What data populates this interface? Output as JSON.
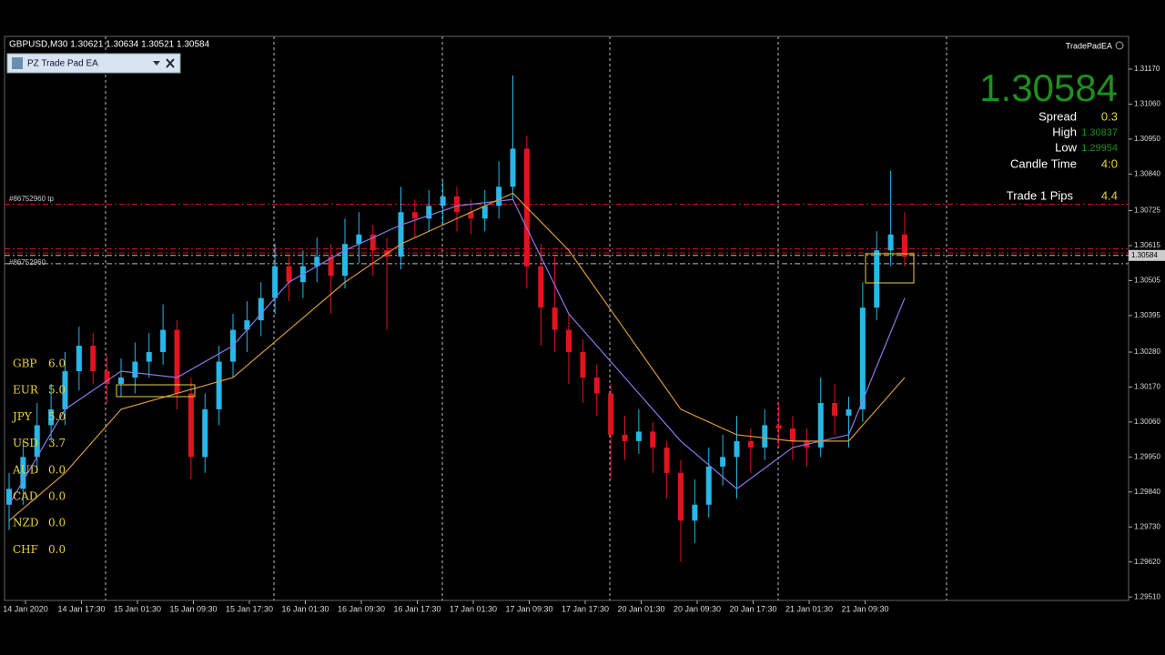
{
  "header": {
    "symbol_line": "GBPUSD,M30  1.30621 1.30634 1.30521 1.30584",
    "expert": "TradePadEA"
  },
  "panel": {
    "title": "PZ Trade Pad EA"
  },
  "info": {
    "price": "1.30584",
    "spread_label": "Spread",
    "spread": "0.3",
    "high_label": "High",
    "high": "1.30837",
    "low_label": "Low",
    "low": "1.29954",
    "candle_time_label": "Candle Time",
    "candle_time": "4:0",
    "trade_label": "Trade 1 Pips",
    "trade": "4.4"
  },
  "strength": [
    [
      "GBP",
      "6.0"
    ],
    [
      "EUR",
      "5.0"
    ],
    [
      "JPY",
      "5.0"
    ],
    [
      "USD",
      "3.7"
    ],
    [
      "AUD",
      "0.0"
    ],
    [
      "CAD",
      "0.0"
    ],
    [
      "NZD",
      "0.0"
    ],
    [
      "CHF",
      "0.0"
    ]
  ],
  "orders": [
    "#86752960 tp",
    "#86752960"
  ],
  "chart_data": {
    "type": "candlestick",
    "categories": [
      "14 Jan 2020",
      "14 Jan 17:30",
      "15 Jan 01:30",
      "15 Jan 09:30",
      "15 Jan 17:30",
      "16 Jan 01:30",
      "16 Jan 09:30",
      "16 Jan 17:30",
      "17 Jan 01:30",
      "17 Jan 09:30",
      "17 Jan 17:30",
      "20 Jan 01:30",
      "20 Jan 09:30",
      "20 Jan 17:30",
      "21 Jan 01:30",
      "21 Jan 09:30"
    ],
    "ylim": [
      1.29499,
      1.31273
    ],
    "yticks": [
      {
        "value": 1.3117,
        "label": "1.31170"
      },
      {
        "value": 1.3106,
        "label": "1.31060"
      },
      {
        "value": 1.3095,
        "label": "1.30950"
      },
      {
        "value": 1.3084,
        "label": "1.30840"
      },
      {
        "value": 1.30725,
        "label": "1.30725"
      },
      {
        "value": 1.30615,
        "label": "1.30615"
      },
      {
        "value": 1.30505,
        "label": "1.30505"
      },
      {
        "value": 1.30395,
        "label": "1.30395"
      },
      {
        "value": 1.3028,
        "label": "1.30280"
      },
      {
        "value": 1.3017,
        "label": "1.30170"
      },
      {
        "value": 1.3006,
        "label": "1.30060"
      },
      {
        "value": 1.2995,
        "label": "1.29950"
      },
      {
        "value": 1.2984,
        "label": "1.29840"
      },
      {
        "value": 1.2973,
        "label": "1.29730"
      },
      {
        "value": 1.2962,
        "label": "1.29620"
      },
      {
        "value": 1.2951,
        "label": "1.29510"
      }
    ],
    "current": {
      "value": 1.30584,
      "label": "1.30584"
    },
    "up_color": "#27b7e8",
    "down_color": "#e0141e",
    "candles": [
      [
        1.298,
        1.299,
        1.2972,
        1.2985
      ],
      [
        1.2985,
        1.3,
        1.298,
        1.2995
      ],
      [
        1.2995,
        1.3012,
        1.299,
        1.3005
      ],
      [
        1.3005,
        1.3018,
        1.3,
        1.301
      ],
      [
        1.301,
        1.3028,
        1.3005,
        1.3022
      ],
      [
        1.3022,
        1.3036,
        1.3016,
        1.303
      ],
      [
        1.303,
        1.3034,
        1.3018,
        1.3022
      ],
      [
        1.3022,
        1.3027,
        1.3012,
        1.3018
      ],
      [
        1.3018,
        1.3026,
        1.3014,
        1.302
      ],
      [
        1.302,
        1.3031,
        1.3015,
        1.3025
      ],
      [
        1.3025,
        1.3034,
        1.302,
        1.3028
      ],
      [
        1.3028,
        1.3043,
        1.3024,
        1.3035
      ],
      [
        1.3035,
        1.3038,
        1.301,
        1.3015
      ],
      [
        1.3015,
        1.302,
        1.2988,
        1.2995
      ],
      [
        1.2995,
        1.3015,
        1.299,
        1.301
      ],
      [
        1.301,
        1.303,
        1.3005,
        1.3025
      ],
      [
        1.3025,
        1.304,
        1.302,
        1.3035
      ],
      [
        1.3035,
        1.3044,
        1.3028,
        1.3038
      ],
      [
        1.3038,
        1.305,
        1.3033,
        1.3045
      ],
      [
        1.3045,
        1.3062,
        1.304,
        1.3055
      ],
      [
        1.3055,
        1.3058,
        1.3044,
        1.305
      ],
      [
        1.305,
        1.306,
        1.3045,
        1.3055
      ],
      [
        1.3055,
        1.3064,
        1.305,
        1.3058
      ],
      [
        1.3058,
        1.3062,
        1.304,
        1.3052
      ],
      [
        1.3052,
        1.307,
        1.3048,
        1.3062
      ],
      [
        1.3062,
        1.3072,
        1.3056,
        1.3065
      ],
      [
        1.3065,
        1.3068,
        1.3052,
        1.306
      ],
      [
        1.306,
        1.3064,
        1.3035,
        1.3058
      ],
      [
        1.3058,
        1.308,
        1.3054,
        1.3072
      ],
      [
        1.3072,
        1.3076,
        1.3064,
        1.307
      ],
      [
        1.307,
        1.3079,
        1.3066,
        1.3074
      ],
      [
        1.3074,
        1.3082,
        1.3068,
        1.3077
      ],
      [
        1.3077,
        1.308,
        1.3066,
        1.3072
      ],
      [
        1.3072,
        1.3076,
        1.3065,
        1.307
      ],
      [
        1.307,
        1.3079,
        1.3066,
        1.3074
      ],
      [
        1.3074,
        1.3088,
        1.307,
        1.308
      ],
      [
        1.308,
        1.3115,
        1.3076,
        1.3092
      ],
      [
        1.3092,
        1.3096,
        1.3048,
        1.3055
      ],
      [
        1.3055,
        1.3062,
        1.303,
        1.3042
      ],
      [
        1.3042,
        1.3058,
        1.3028,
        1.3035
      ],
      [
        1.3035,
        1.304,
        1.3018,
        1.3028
      ],
      [
        1.3028,
        1.3032,
        1.3012,
        1.302
      ],
      [
        1.302,
        1.3024,
        1.3008,
        1.3015
      ],
      [
        1.3015,
        1.3018,
        1.2988,
        1.3002
      ],
      [
        1.3002,
        1.3008,
        1.2994,
        1.3
      ],
      [
        1.3,
        1.301,
        1.2996,
        1.3003
      ],
      [
        1.3003,
        1.3006,
        1.299,
        1.2998
      ],
      [
        1.2998,
        1.3,
        1.2982,
        1.299
      ],
      [
        1.299,
        1.2994,
        1.2962,
        1.2975
      ],
      [
        1.2975,
        1.2988,
        1.2968,
        1.298
      ],
      [
        1.298,
        1.2998,
        1.2976,
        1.2992
      ],
      [
        1.2992,
        1.3002,
        1.2986,
        1.2995
      ],
      [
        1.2995,
        1.3008,
        1.2982,
        1.3
      ],
      [
        1.3,
        1.3004,
        1.299,
        1.2998
      ],
      [
        1.2998,
        1.301,
        1.2994,
        1.3005
      ],
      [
        1.3005,
        1.3012,
        1.2998,
        1.3004
      ],
      [
        1.3004,
        1.3008,
        1.2994,
        1.3
      ],
      [
        1.3,
        1.3004,
        1.2992,
        1.2998
      ],
      [
        1.2998,
        1.302,
        1.2995,
        1.3012
      ],
      [
        1.3012,
        1.3018,
        1.3002,
        1.3008
      ],
      [
        1.3008,
        1.3014,
        1.2998,
        1.301
      ],
      [
        1.301,
        1.305,
        1.3006,
        1.3042
      ],
      [
        1.3042,
        1.3066,
        1.3038,
        1.306
      ],
      [
        1.306,
        1.3085,
        1.3055,
        1.3065
      ],
      [
        1.3065,
        1.3072,
        1.3055,
        1.3058
      ]
    ],
    "series": [
      {
        "color": "#8a78e6",
        "x": [
          0,
          4,
          8,
          12,
          16,
          20,
          24,
          28,
          32,
          36,
          40,
          44,
          48,
          52,
          56,
          60,
          64
        ],
        "values": [
          1.298,
          1.301,
          1.3022,
          1.302,
          1.303,
          1.305,
          1.306,
          1.3068,
          1.3074,
          1.3076,
          1.304,
          1.302,
          1.3,
          1.2985,
          1.2998,
          1.3002,
          1.3045
        ]
      },
      {
        "color": "#d69a3c",
        "x": [
          0,
          4,
          8,
          12,
          16,
          20,
          24,
          28,
          32,
          36,
          40,
          44,
          48,
          52,
          56,
          60,
          64
        ],
        "values": [
          1.2975,
          1.299,
          1.301,
          1.3015,
          1.302,
          1.3035,
          1.305,
          1.3062,
          1.307,
          1.3078,
          1.306,
          1.3035,
          1.301,
          1.3002,
          1.3,
          1.3,
          1.302
        ]
      }
    ],
    "levels": [
      {
        "value": 1.30745,
        "color": "#c8141e"
      },
      {
        "value": 1.30605,
        "color": "#c8141e"
      },
      {
        "value": 1.30592,
        "color": "#c8141e"
      },
      {
        "value": 1.30584,
        "color": "#bbbbbb"
      },
      {
        "value": 1.30558,
        "color": "#bbbbbb"
      }
    ]
  }
}
